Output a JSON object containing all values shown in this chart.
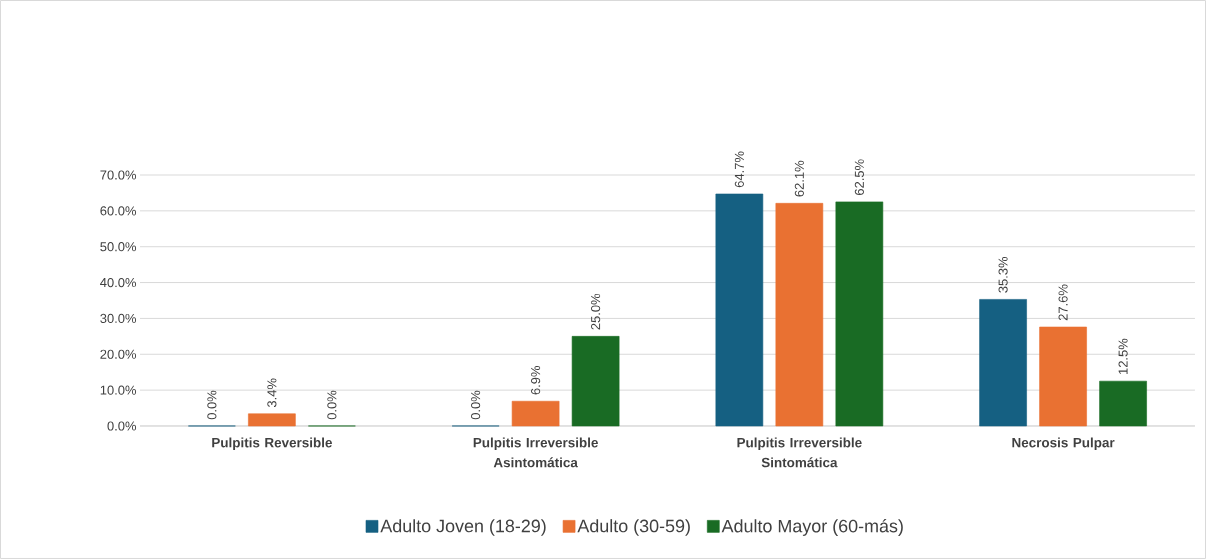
{
  "chart_data": {
    "type": "bar",
    "categories": [
      "Pulpitis Reversible",
      "Pulpitis Irreversible Asintomática",
      "Pulpitis Irreversible Sintomática",
      "Necrosis Pulpar"
    ],
    "series": [
      {
        "name": "Adulto Joven (18-29)",
        "color": "#156082",
        "values": [
          0.0,
          0.0,
          64.7,
          35.3
        ],
        "value_labels": [
          "0.0%",
          "0.0%",
          "64.7%",
          "35.3%"
        ]
      },
      {
        "name": "Adulto (30-59)",
        "color": "#e97132",
        "values": [
          3.4,
          6.9,
          62.1,
          27.6
        ],
        "value_labels": [
          "3.4%",
          "6.9%",
          "62.1%",
          "27.6%"
        ]
      },
      {
        "name": "Adulto Mayor (60-más)",
        "color": "#196b24",
        "values": [
          0.0,
          25.0,
          62.5,
          12.5
        ],
        "value_labels": [
          "0.0%",
          "25.0%",
          "62.5%",
          "12.5%"
        ]
      }
    ],
    "ylim": [
      0,
      70
    ],
    "yticks": [
      {
        "value": 0,
        "label": "0.0%"
      },
      {
        "value": 10,
        "label": "10.0%"
      },
      {
        "value": 20,
        "label": "20.0%"
      },
      {
        "value": 30,
        "label": "30.0%"
      },
      {
        "value": 40,
        "label": "40.0%"
      },
      {
        "value": 50,
        "label": "50.0%"
      },
      {
        "value": 60,
        "label": "60.0%"
      },
      {
        "value": 70,
        "label": "70.0%"
      }
    ],
    "grid": "y",
    "legend": "bottom"
  }
}
